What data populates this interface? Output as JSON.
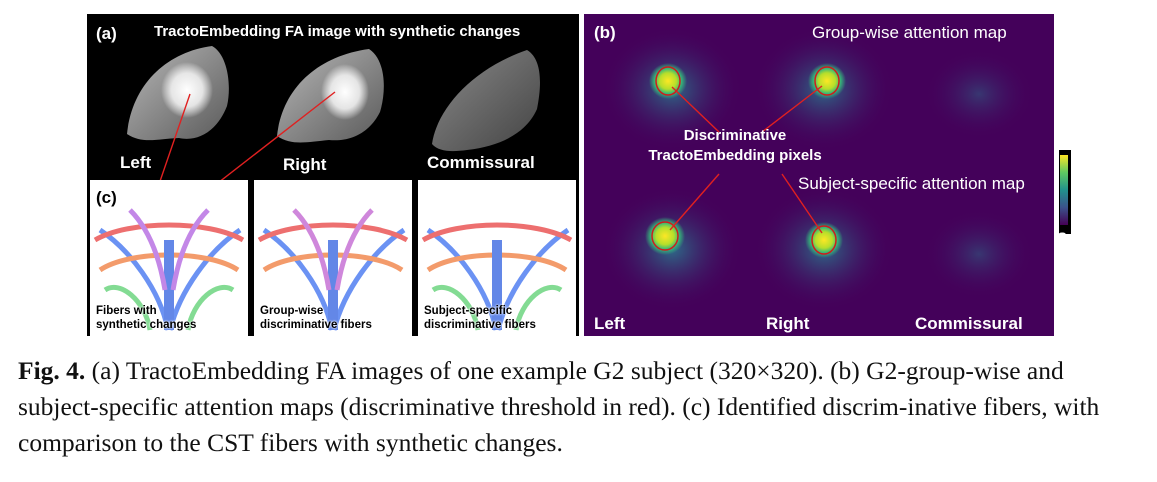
{
  "panel_a": {
    "label": "(a)",
    "title": "TractoEmbedding FA image with synthetic changes",
    "regions": [
      "Left",
      "Right",
      "Commissural"
    ]
  },
  "panel_b": {
    "label": "(b)",
    "group_title": "Group-wise attention map",
    "subject_title": "Subject-specific attention map",
    "annotation_line1": "Discriminative",
    "annotation_line2": "TractoEmbedding pixels",
    "regions": [
      "Left",
      "Right",
      "Commissural"
    ],
    "colorbar_max": "1",
    "colorbar_min": "0"
  },
  "panel_c": {
    "label": "(c)",
    "captions": [
      [
        "Fibers with",
        "synthetic changes"
      ],
      [
        "Group-wise",
        "discriminative fibers"
      ],
      [
        "Subject-specific",
        "discriminative fibers"
      ]
    ]
  },
  "caption": {
    "prefix": "Fig. 4.",
    "text": " (a) TractoEmbedding FA images of one example G2 subject (320×320). (b) G2-group-wise and subject-specific attention maps (discriminative threshold in red). (c) Identified discrim-inative fibers, with comparison to the CST fibers with synthetic changes."
  },
  "colors": {
    "attention_background": "#44015a",
    "threshold": "#d01c1c",
    "arrow": "#e02020"
  }
}
